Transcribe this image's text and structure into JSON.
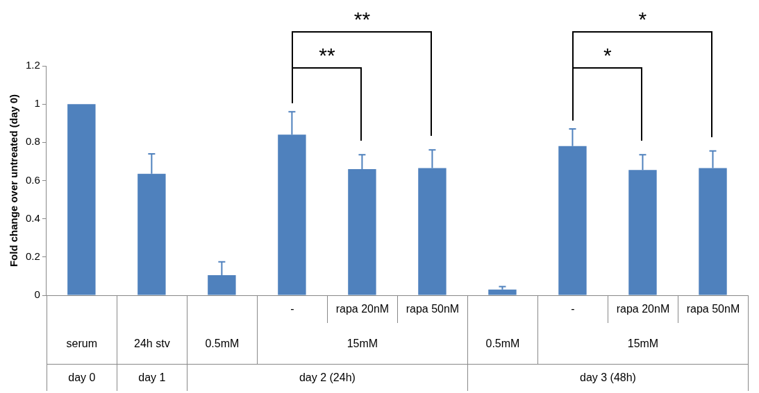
{
  "chart_data": {
    "type": "bar",
    "ylabel": "Fold change over untreated (day 0)",
    "categories": [
      null,
      null,
      null,
      "-",
      "rapa 20nM",
      "rapa 50nM",
      null,
      "-",
      "rapa 20nM",
      "rapa 50nM"
    ],
    "values": [
      1.0,
      0.635,
      0.105,
      0.84,
      0.66,
      0.665,
      0.03,
      0.78,
      0.655,
      0.665
    ],
    "errors": [
      null,
      0.105,
      0.07,
      0.12,
      0.075,
      0.095,
      0.015,
      0.09,
      0.08,
      0.09
    ],
    "color": "#4f81bd",
    "ylim": [
      0,
      1.2
    ],
    "yticks": [
      0,
      0.2,
      0.4,
      0.6,
      0.8,
      1,
      1.2
    ],
    "grid": false,
    "annotations": [
      "serum",
      "24h stv",
      "0.5mM",
      "15mM",
      "0.5mM",
      "15mM",
      "day 0",
      "day 1",
      "day 2 (24h)",
      "day 3 (48h)",
      "**",
      "**",
      "*",
      "*"
    ]
  }
}
